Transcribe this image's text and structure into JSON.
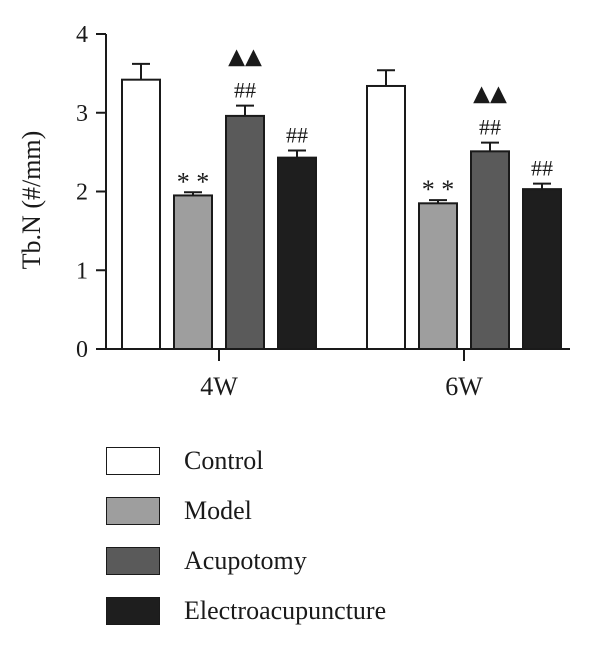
{
  "chart_data": {
    "type": "bar",
    "ylabel": "Tb.N (#/mm)",
    "xlabel": "",
    "ylim": [
      0,
      4
    ],
    "yticks": [
      0,
      1,
      2,
      3,
      4
    ],
    "categories": [
      "4W",
      "6W"
    ],
    "series": [
      {
        "name": "Control",
        "color": "#ffffff",
        "values": [
          3.42,
          3.34
        ],
        "errors": [
          0.2,
          0.2
        ],
        "annotations": [
          "",
          ""
        ]
      },
      {
        "name": "Model",
        "color": "#9e9e9e",
        "values": [
          1.95,
          1.85
        ],
        "errors": [
          0.04,
          0.04
        ],
        "annotations": [
          "**",
          "**"
        ]
      },
      {
        "name": "Acupotomy",
        "color": "#5a5a5a",
        "values": [
          2.96,
          2.51
        ],
        "errors": [
          0.13,
          0.11
        ],
        "annotations": [
          "##|▲▲",
          "##|▲▲"
        ]
      },
      {
        "name": "Electroacupuncture",
        "color": "#1e1e1e",
        "values": [
          2.43,
          2.03
        ],
        "errors": [
          0.09,
          0.07
        ],
        "annotations": [
          "##",
          "##"
        ]
      }
    ],
    "legend_position": "bottom"
  }
}
